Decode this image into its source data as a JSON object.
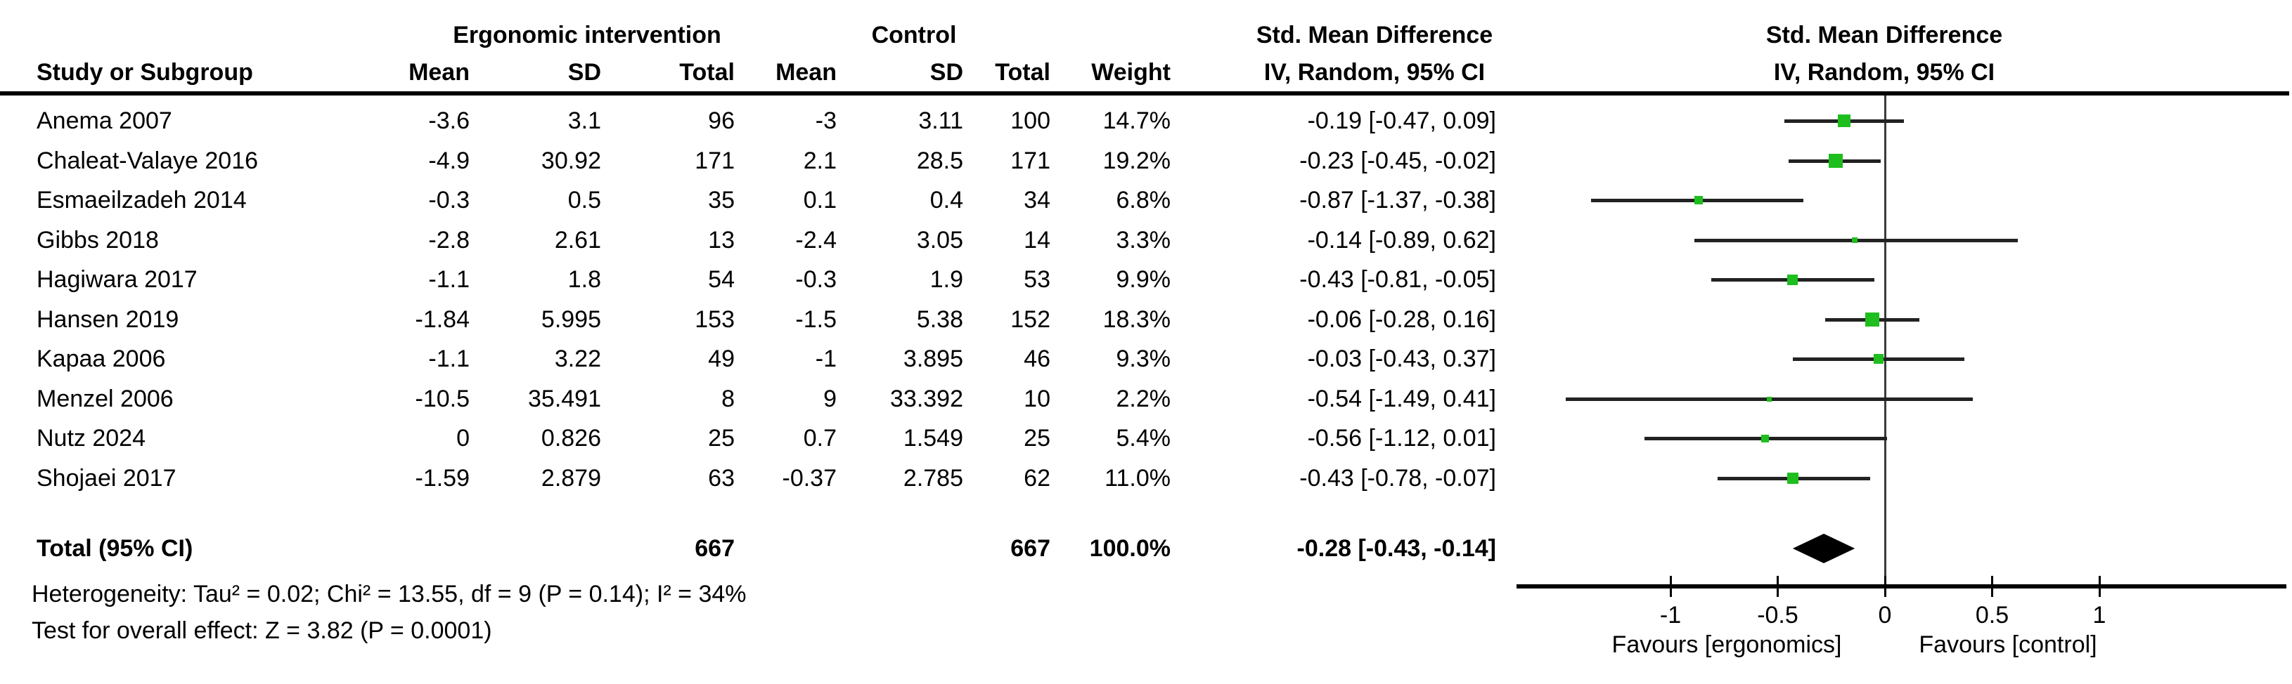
{
  "header": {
    "group1": "Ergonomic intervention",
    "group2": "Control",
    "smd_col_title": "Std. Mean Difference",
    "smd_col_sub": "IV, Random, 95% CI",
    "plot_title": "Std. Mean Difference",
    "plot_sub": "IV, Random, 95% CI",
    "col_study": "Study or Subgroup",
    "col_mean1": "Mean",
    "col_sd1": "SD",
    "col_total1": "Total",
    "col_mean2": "Mean",
    "col_sd2": "SD",
    "col_total2": "Total",
    "col_weight": "Weight"
  },
  "chart_data": {
    "type": "forest",
    "effect_measure": "Std. Mean Difference, IV, Random, 95% CI",
    "studies": [
      {
        "name": "Anema 2007",
        "int_mean": "-3.6",
        "int_sd": "3.1",
        "int_total": "96",
        "ctrl_mean": "-3",
        "ctrl_sd": "3.11",
        "ctrl_total": "100",
        "weight": "14.7%",
        "weight_pct": 14.7,
        "ci_text": "-0.19 [-0.47, 0.09]",
        "est": -0.19,
        "lo": -0.47,
        "hi": 0.09
      },
      {
        "name": "Chaleat-Valaye 2016",
        "int_mean": "-4.9",
        "int_sd": "30.92",
        "int_total": "171",
        "ctrl_mean": "2.1",
        "ctrl_sd": "28.5",
        "ctrl_total": "171",
        "weight": "19.2%",
        "weight_pct": 19.2,
        "ci_text": "-0.23 [-0.45, -0.02]",
        "est": -0.23,
        "lo": -0.45,
        "hi": -0.02
      },
      {
        "name": "Esmaeilzadeh 2014",
        "int_mean": "-0.3",
        "int_sd": "0.5",
        "int_total": "35",
        "ctrl_mean": "0.1",
        "ctrl_sd": "0.4",
        "ctrl_total": "34",
        "weight": "6.8%",
        "weight_pct": 6.8,
        "ci_text": "-0.87 [-1.37, -0.38]",
        "est": -0.87,
        "lo": -1.37,
        "hi": -0.38
      },
      {
        "name": "Gibbs 2018",
        "int_mean": "-2.8",
        "int_sd": "2.61",
        "int_total": "13",
        "ctrl_mean": "-2.4",
        "ctrl_sd": "3.05",
        "ctrl_total": "14",
        "weight": "3.3%",
        "weight_pct": 3.3,
        "ci_text": "-0.14 [-0.89, 0.62]",
        "est": -0.14,
        "lo": -0.89,
        "hi": 0.62
      },
      {
        "name": "Hagiwara 2017",
        "int_mean": "-1.1",
        "int_sd": "1.8",
        "int_total": "54",
        "ctrl_mean": "-0.3",
        "ctrl_sd": "1.9",
        "ctrl_total": "53",
        "weight": "9.9%",
        "weight_pct": 9.9,
        "ci_text": "-0.43 [-0.81, -0.05]",
        "est": -0.43,
        "lo": -0.81,
        "hi": -0.05
      },
      {
        "name": "Hansen 2019",
        "int_mean": "-1.84",
        "int_sd": "5.995",
        "int_total": "153",
        "ctrl_mean": "-1.5",
        "ctrl_sd": "5.38",
        "ctrl_total": "152",
        "weight": "18.3%",
        "weight_pct": 18.3,
        "ci_text": "-0.06 [-0.28, 0.16]",
        "est": -0.06,
        "lo": -0.28,
        "hi": 0.16
      },
      {
        "name": "Kapaa 2006",
        "int_mean": "-1.1",
        "int_sd": "3.22",
        "int_total": "49",
        "ctrl_mean": "-1",
        "ctrl_sd": "3.895",
        "ctrl_total": "46",
        "weight": "9.3%",
        "weight_pct": 9.3,
        "ci_text": "-0.03 [-0.43, 0.37]",
        "est": -0.03,
        "lo": -0.43,
        "hi": 0.37
      },
      {
        "name": "Menzel 2006",
        "int_mean": "-10.5",
        "int_sd": "35.491",
        "int_total": "8",
        "ctrl_mean": "9",
        "ctrl_sd": "33.392",
        "ctrl_total": "10",
        "weight": "2.2%",
        "weight_pct": 2.2,
        "ci_text": "-0.54 [-1.49, 0.41]",
        "est": -0.54,
        "lo": -1.49,
        "hi": 0.41
      },
      {
        "name": "Nutz 2024",
        "int_mean": "0",
        "int_sd": "0.826",
        "int_total": "25",
        "ctrl_mean": "0.7",
        "ctrl_sd": "1.549",
        "ctrl_total": "25",
        "weight": "5.4%",
        "weight_pct": 5.4,
        "ci_text": "-0.56 [-1.12, 0.01]",
        "est": -0.56,
        "lo": -1.12,
        "hi": 0.01
      },
      {
        "name": "Shojaei 2017",
        "int_mean": "-1.59",
        "int_sd": "2.879",
        "int_total": "63",
        "ctrl_mean": "-0.37",
        "ctrl_sd": "2.785",
        "ctrl_total": "62",
        "weight": "11.0%",
        "weight_pct": 11.0,
        "ci_text": "-0.43 [-0.78, -0.07]",
        "est": -0.43,
        "lo": -0.78,
        "hi": -0.07
      }
    ],
    "total": {
      "label": "Total (95% CI)",
      "int_total": "667",
      "ctrl_total": "667",
      "weight": "100.0%",
      "ci_text": "-0.28 [-0.43, -0.14]",
      "est": -0.28,
      "lo": -0.43,
      "hi": -0.14
    },
    "heterogeneity": "Heterogeneity: Tau² = 0.02; Chi² = 13.55, df = 9 (P = 0.14); I² = 34%",
    "overall_effect": "Test for overall effect: Z = 3.82 (P = 0.0001)",
    "axis": {
      "ticks": [
        -1,
        -0.5,
        0,
        0.5,
        1
      ],
      "tick_labels": [
        "-1",
        "-0.5",
        "0",
        "0.5",
        "1"
      ],
      "range": [
        -1.72,
        1.87
      ]
    },
    "favours_left": "Favours [ergonomics]",
    "favours_right": "Favours [control]",
    "colors": {
      "marker": "#1EBE1E",
      "diamond": "#000000",
      "line": "#222222",
      "zero_line": "#3a3a3a"
    }
  }
}
